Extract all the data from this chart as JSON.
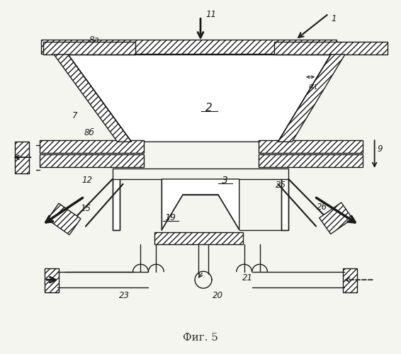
{
  "fig_label": "Фиг. 5",
  "bg_color": "#f5f5f0",
  "lc": "#1a1a1a",
  "lw": 1.0
}
